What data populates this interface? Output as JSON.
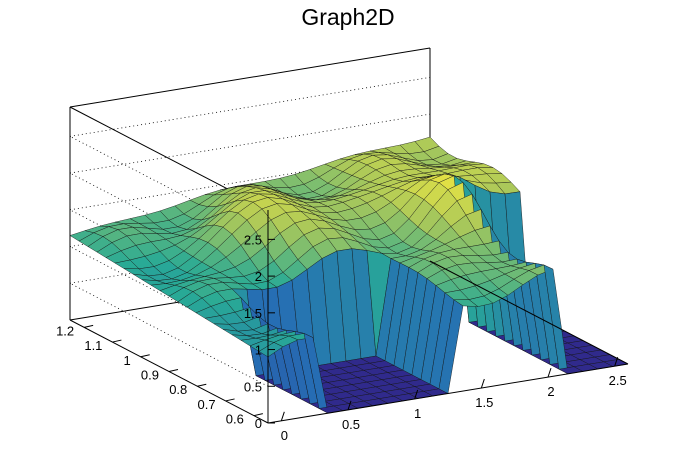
{
  "chart_data": {
    "type": "surface3d",
    "title": "Graph2D",
    "xlabel": "",
    "ylabel": "",
    "zlabel": "",
    "xlim": [
      -0.1,
      2.6
    ],
    "ylim": [
      0.55,
      1.25
    ],
    "zlim": [
      0,
      2.9
    ],
    "x_ticks": [
      "0",
      "0.5",
      "1",
      "1.5",
      "2",
      "2.5"
    ],
    "y_ticks": [
      "0.6",
      "0.7",
      "0.8",
      "0.9",
      "1",
      "1.1",
      "1.2"
    ],
    "z_ticks": [
      "0",
      "0.5",
      "1",
      "1.5",
      "2",
      "2.5"
    ],
    "colormap": "viridis-like",
    "grid": true,
    "nx": 24,
    "ny": 22,
    "surface": {
      "zero_region_x": [
        0.35,
        1.32
      ],
      "zero_region_y_max": 0.82,
      "corner_zero_x_min": 2.08,
      "corner_zero_y_max": 0.9,
      "ridge_peak_z": 2.0,
      "ridge_peak_x": 0.95,
      "ridge_peak_y": 1.02,
      "right_peak_z": 2.1,
      "right_peak_x": 2.0,
      "left_edge_z": 0.9
    }
  }
}
